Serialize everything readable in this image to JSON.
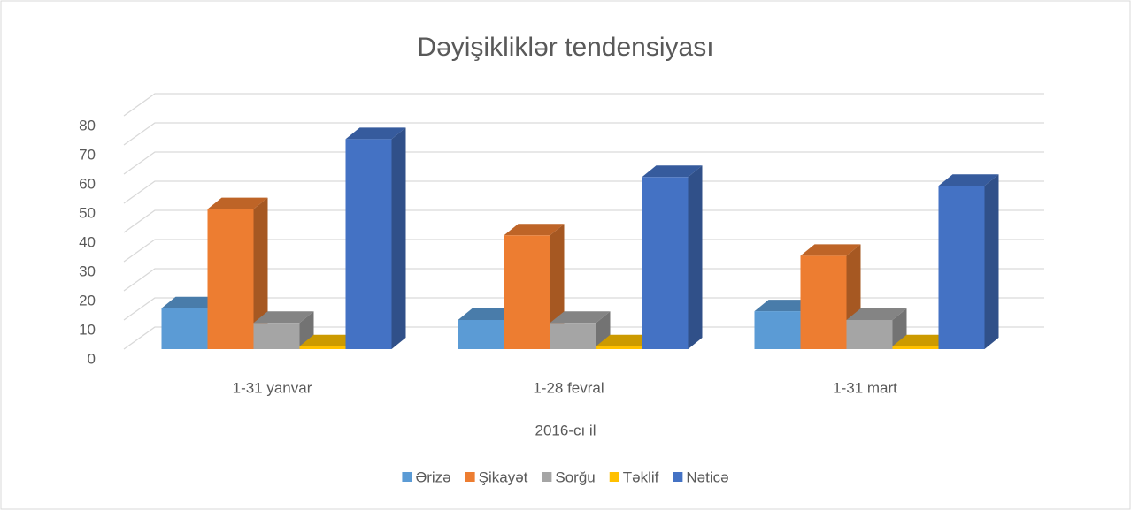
{
  "chart_data": {
    "type": "bar3d",
    "title": "Dəyişikliklər tendensiyası",
    "x_label": "2016-cı il",
    "categories": [
      "1-31 yanvar",
      "1-28 fevral",
      "1-31 mart"
    ],
    "series": [
      {
        "name": "Ərizə",
        "color": "#5b9bd5",
        "values": [
          14,
          10,
          13
        ]
      },
      {
        "name": "Şikayət",
        "color": "#ed7d31",
        "values": [
          48,
          39,
          32
        ]
      },
      {
        "name": "Sorğu",
        "color": "#a5a5a5",
        "values": [
          9,
          9,
          10
        ]
      },
      {
        "name": "Təklif",
        "color": "#ffc000",
        "values": [
          1,
          1,
          1
        ]
      },
      {
        "name": "Nəticə",
        "color": "#4472c4",
        "values": [
          72,
          59,
          56
        ]
      }
    ],
    "ylim": [
      0,
      80
    ],
    "yticks": [
      0,
      10,
      20,
      30,
      40,
      50,
      60,
      70,
      80
    ],
    "grid": true,
    "legend": "bottom"
  }
}
